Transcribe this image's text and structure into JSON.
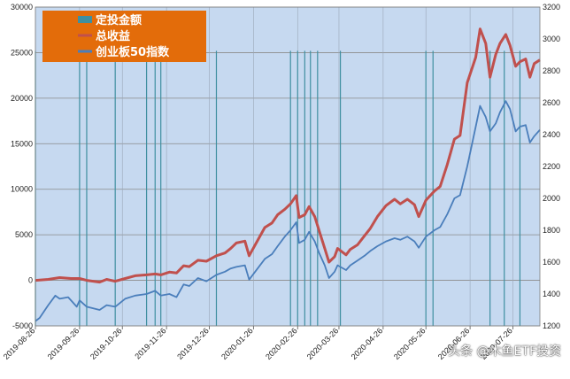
{
  "chart_data": {
    "type": "line",
    "title": "",
    "left_axis": {
      "ylim": [
        -5000,
        30000
      ],
      "ticks": [
        -5000,
        0,
        5000,
        10000,
        15000,
        20000,
        25000,
        30000
      ]
    },
    "right_axis": {
      "ylim": [
        1200,
        3200
      ],
      "ticks": [
        1200,
        1400,
        1600,
        1800,
        2000,
        2200,
        2400,
        2600,
        2800,
        3000,
        3200
      ]
    },
    "x_tick_labels": [
      "2019-08-26",
      "2019-09-26",
      "2019-10-26",
      "2019-11-26",
      "2019-12-26",
      "2020-01-26",
      "2020-02-26",
      "2020-03-26",
      "2020-04-26",
      "2020-05-26",
      "2020-06-26",
      "2020-07-26"
    ],
    "x_range": [
      "2019-08-26",
      "2020-08-14"
    ],
    "grid": true,
    "legend_position": "top-left",
    "legend": [
      {
        "label": "定投金额",
        "color": "#3f8fa0",
        "style": "bar"
      },
      {
        "label": "总收益",
        "color": "#c0504d",
        "style": "line"
      },
      {
        "label": "创业板50指数",
        "color": "#4a7ebb",
        "style": "line"
      }
    ],
    "series": [
      {
        "name": "总收益",
        "axis": "left",
        "color": "#c0504d",
        "points": [
          [
            "2019-08-26",
            0
          ],
          [
            "2019-09-04",
            100
          ],
          [
            "2019-09-12",
            300
          ],
          [
            "2019-09-20",
            200
          ],
          [
            "2019-09-26",
            200
          ],
          [
            "2019-10-01",
            0
          ],
          [
            "2019-10-10",
            -200
          ],
          [
            "2019-10-15",
            100
          ],
          [
            "2019-10-21",
            -100
          ],
          [
            "2019-10-28",
            200
          ],
          [
            "2019-11-04",
            500
          ],
          [
            "2019-11-12",
            600
          ],
          [
            "2019-11-18",
            700
          ],
          [
            "2019-11-22",
            600
          ],
          [
            "2019-11-28",
            900
          ],
          [
            "2019-12-03",
            800
          ],
          [
            "2019-12-08",
            1600
          ],
          [
            "2019-12-12",
            1500
          ],
          [
            "2019-12-18",
            2200
          ],
          [
            "2019-12-24",
            2100
          ],
          [
            "2019-12-31",
            2700
          ],
          [
            "2020-01-06",
            3000
          ],
          [
            "2020-01-10",
            3500
          ],
          [
            "2020-01-14",
            4100
          ],
          [
            "2020-01-20",
            4300
          ],
          [
            "2020-01-23",
            2700
          ],
          [
            "2020-02-03",
            5800
          ],
          [
            "2020-02-08",
            6300
          ],
          [
            "2020-02-12",
            7200
          ],
          [
            "2020-02-17",
            7800
          ],
          [
            "2020-02-21",
            8400
          ],
          [
            "2020-02-25",
            9300
          ],
          [
            "2020-02-27",
            6900
          ],
          [
            "2020-03-02",
            7200
          ],
          [
            "2020-03-05",
            8100
          ],
          [
            "2020-03-09",
            7000
          ],
          [
            "2020-03-12",
            5500
          ],
          [
            "2020-03-16",
            3500
          ],
          [
            "2020-03-19",
            2000
          ],
          [
            "2020-03-23",
            2600
          ],
          [
            "2020-03-25",
            3500
          ],
          [
            "2020-03-31",
            2800
          ],
          [
            "2020-04-03",
            3400
          ],
          [
            "2020-04-08",
            3900
          ],
          [
            "2020-04-13",
            4900
          ],
          [
            "2020-04-17",
            5700
          ],
          [
            "2020-04-22",
            7000
          ],
          [
            "2020-04-28",
            8200
          ],
          [
            "2020-05-04",
            8900
          ],
          [
            "2020-05-08",
            8400
          ],
          [
            "2020-05-13",
            8900
          ],
          [
            "2020-05-18",
            8300
          ],
          [
            "2020-05-21",
            7000
          ],
          [
            "2020-05-26",
            8800
          ],
          [
            "2020-06-01",
            9800
          ],
          [
            "2020-06-05",
            10300
          ],
          [
            "2020-06-10",
            12700
          ],
          [
            "2020-06-15",
            15500
          ],
          [
            "2020-06-19",
            15900
          ],
          [
            "2020-06-24",
            21700
          ],
          [
            "2020-06-30",
            24500
          ],
          [
            "2020-07-03",
            27600
          ],
          [
            "2020-07-07",
            26000
          ],
          [
            "2020-07-10",
            22300
          ],
          [
            "2020-07-14",
            24800
          ],
          [
            "2020-07-17",
            26000
          ],
          [
            "2020-07-21",
            27000
          ],
          [
            "2020-07-24",
            25800
          ],
          [
            "2020-07-28",
            23500
          ],
          [
            "2020-07-31",
            24000
          ],
          [
            "2020-08-04",
            24300
          ],
          [
            "2020-08-07",
            22300
          ],
          [
            "2020-08-10",
            23800
          ],
          [
            "2020-08-14",
            24200
          ]
        ]
      },
      {
        "name": "创业板50指数",
        "axis": "right",
        "color": "#4a7ebb",
        "points": [
          [
            "2019-08-26",
            1230
          ],
          [
            "2019-08-29",
            1250
          ],
          [
            "2019-09-04",
            1330
          ],
          [
            "2019-09-09",
            1390
          ],
          [
            "2019-09-12",
            1370
          ],
          [
            "2019-09-18",
            1380
          ],
          [
            "2019-09-24",
            1320
          ],
          [
            "2019-09-26",
            1360
          ],
          [
            "2019-10-01",
            1320
          ],
          [
            "2019-10-10",
            1300
          ],
          [
            "2019-10-15",
            1330
          ],
          [
            "2019-10-21",
            1320
          ],
          [
            "2019-10-28",
            1370
          ],
          [
            "2019-11-04",
            1390
          ],
          [
            "2019-11-12",
            1400
          ],
          [
            "2019-11-18",
            1420
          ],
          [
            "2019-11-22",
            1390
          ],
          [
            "2019-11-28",
            1400
          ],
          [
            "2019-12-03",
            1380
          ],
          [
            "2019-12-08",
            1460
          ],
          [
            "2019-12-12",
            1450
          ],
          [
            "2019-12-18",
            1500
          ],
          [
            "2019-12-24",
            1480
          ],
          [
            "2019-12-31",
            1520
          ],
          [
            "2020-01-06",
            1540
          ],
          [
            "2020-01-10",
            1560
          ],
          [
            "2020-01-14",
            1570
          ],
          [
            "2020-01-20",
            1580
          ],
          [
            "2020-01-23",
            1490
          ],
          [
            "2020-02-03",
            1620
          ],
          [
            "2020-02-08",
            1650
          ],
          [
            "2020-02-12",
            1700
          ],
          [
            "2020-02-17",
            1760
          ],
          [
            "2020-02-21",
            1800
          ],
          [
            "2020-02-25",
            1850
          ],
          [
            "2020-02-27",
            1720
          ],
          [
            "2020-03-02",
            1740
          ],
          [
            "2020-03-05",
            1790
          ],
          [
            "2020-03-09",
            1730
          ],
          [
            "2020-03-12",
            1660
          ],
          [
            "2020-03-16",
            1580
          ],
          [
            "2020-03-19",
            1500
          ],
          [
            "2020-03-23",
            1540
          ],
          [
            "2020-03-25",
            1580
          ],
          [
            "2020-03-31",
            1550
          ],
          [
            "2020-04-03",
            1580
          ],
          [
            "2020-04-08",
            1610
          ],
          [
            "2020-04-13",
            1640
          ],
          [
            "2020-04-17",
            1670
          ],
          [
            "2020-04-22",
            1700
          ],
          [
            "2020-04-28",
            1730
          ],
          [
            "2020-05-04",
            1750
          ],
          [
            "2020-05-08",
            1740
          ],
          [
            "2020-05-13",
            1760
          ],
          [
            "2020-05-18",
            1730
          ],
          [
            "2020-05-21",
            1690
          ],
          [
            "2020-05-26",
            1760
          ],
          [
            "2020-06-01",
            1800
          ],
          [
            "2020-06-05",
            1820
          ],
          [
            "2020-06-10",
            1900
          ],
          [
            "2020-06-15",
            2000
          ],
          [
            "2020-06-19",
            2020
          ],
          [
            "2020-06-24",
            2200
          ],
          [
            "2020-06-30",
            2450
          ],
          [
            "2020-07-03",
            2580
          ],
          [
            "2020-07-07",
            2510
          ],
          [
            "2020-07-10",
            2420
          ],
          [
            "2020-07-14",
            2470
          ],
          [
            "2020-07-17",
            2540
          ],
          [
            "2020-07-21",
            2610
          ],
          [
            "2020-07-24",
            2560
          ],
          [
            "2020-07-28",
            2420
          ],
          [
            "2020-07-31",
            2450
          ],
          [
            "2020-08-04",
            2460
          ],
          [
            "2020-08-07",
            2350
          ],
          [
            "2020-08-10",
            2390
          ],
          [
            "2020-08-14",
            2430
          ]
        ]
      },
      {
        "name": "定投金额",
        "axis": "left",
        "color": "#3f8fa0",
        "style": "vertical-marks",
        "dates": [
          "2019-08-26",
          "2019-09-26",
          "2019-10-01",
          "2019-10-21",
          "2019-11-12",
          "2019-11-18",
          "2019-11-22",
          "2019-12-31",
          "2020-02-21",
          "2020-02-26",
          "2020-03-02",
          "2020-03-06",
          "2020-03-11",
          "2020-03-27",
          "2020-05-26",
          "2020-05-31",
          "2020-07-10",
          "2020-07-20",
          "2020-07-31"
        ]
      }
    ]
  },
  "watermark": "头条 @木鱼ETF投资"
}
